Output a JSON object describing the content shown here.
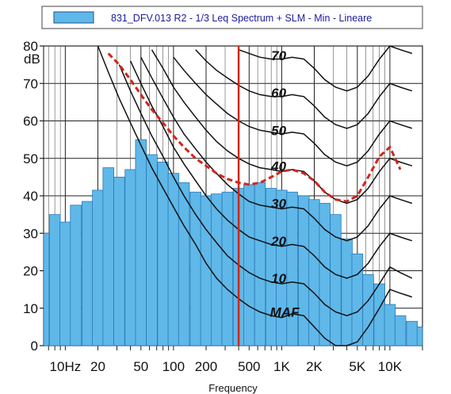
{
  "chart_data": {
    "type": "bar",
    "legend": {
      "label": "831_DFV.013 R2 - 1/3 Leq Spectrum + SLM - Min - Lineare",
      "placement": "top",
      "color": "#5fb8e8"
    },
    "xlabel": "Frequency",
    "ylabel": "dB",
    "ylim": [
      0,
      80
    ],
    "y_ticks": [
      0,
      10,
      20,
      30,
      40,
      50,
      60,
      70,
      80
    ],
    "x_scale": "log",
    "xlim_hz": [
      6.3,
      20000
    ],
    "x_tick_labels": [
      {
        "label": "10Hz",
        "hz": 10
      },
      {
        "label": "20",
        "hz": 20
      },
      {
        "label": "50",
        "hz": 50
      },
      {
        "label": "100",
        "hz": 100
      },
      {
        "label": "200",
        "hz": 200
      },
      {
        "label": "500",
        "hz": 500
      },
      {
        "label": "1K",
        "hz": 1000
      },
      {
        "label": "2K",
        "hz": 2000
      },
      {
        "label": "5K",
        "hz": 5000
      },
      {
        "label": "10K",
        "hz": 10000
      }
    ],
    "grid": true,
    "bars": {
      "series_name": "831_DFV.013 R2 - 1/3 Leq Spectrum + SLM - Min - Lineare",
      "color": "#5fb8e8",
      "band_hz": [
        6.3,
        8,
        10,
        12.5,
        16,
        20,
        25,
        31.5,
        40,
        50,
        63,
        80,
        100,
        125,
        160,
        200,
        250,
        315,
        400,
        500,
        630,
        800,
        1000,
        1250,
        1600,
        2000,
        2500,
        3150,
        4000,
        5000,
        6300,
        8000,
        10000,
        12500,
        16000,
        20000
      ],
      "values": [
        30,
        35,
        33,
        37.5,
        38.5,
        41.5,
        47.5,
        45,
        47,
        55,
        51,
        49,
        46,
        43.5,
        41,
        40,
        40.5,
        41,
        42,
        43,
        43.5,
        42,
        41.5,
        41,
        40,
        39,
        38,
        35,
        28.5,
        24.5,
        19,
        16.5,
        11,
        8,
        6.5,
        5
      ]
    },
    "vertical_marker": {
      "hz": 400,
      "color": "#d0261b"
    },
    "curves": {
      "freq_hz": [
        10,
        12.5,
        16,
        20,
        25,
        31.5,
        40,
        50,
        63,
        80,
        100,
        125,
        160,
        200,
        250,
        315,
        400,
        500,
        630,
        800,
        1000,
        1250,
        1600,
        2000,
        2500,
        3150,
        4000,
        5000,
        6300,
        8000,
        10000,
        12500,
        16000
      ],
      "series": [
        {
          "name": "MAF",
          "values": [
            null,
            null,
            null,
            80,
            73,
            66,
            59.5,
            53.5,
            47.5,
            42,
            37,
            32,
            27,
            22,
            18,
            15,
            12.5,
            10.5,
            9,
            8,
            7.5,
            8.5,
            8,
            5,
            2,
            0,
            -1,
            1,
            5,
            10,
            15,
            14,
            13
          ]
        },
        {
          "name": "10",
          "values": [
            null,
            null,
            null,
            null,
            null,
            75,
            68,
            62,
            56,
            50.5,
            45,
            40,
            35,
            31,
            27.5,
            24,
            21.5,
            19.5,
            18,
            17,
            16.5,
            17,
            16.5,
            14,
            11,
            9,
            8,
            9,
            12,
            16.5,
            21,
            19.5,
            18
          ]
        },
        {
          "name": "20",
          "values": [
            null,
            null,
            null,
            null,
            null,
            null,
            76,
            70,
            64,
            58.5,
            53,
            48.5,
            44,
            40,
            36.5,
            33.5,
            31,
            29,
            28,
            27,
            26.5,
            27,
            26.5,
            24,
            21,
            19,
            18,
            19,
            22,
            26.5,
            30,
            29,
            28
          ]
        },
        {
          "name": "30",
          "values": [
            null,
            null,
            null,
            null,
            null,
            null,
            null,
            77,
            71.5,
            66,
            61,
            56.5,
            52.5,
            49,
            46,
            43,
            40.5,
            38.5,
            37.5,
            37,
            36.5,
            37,
            36.5,
            34,
            31,
            29,
            28,
            29,
            32,
            36.5,
            40,
            39,
            38
          ]
        },
        {
          "name": "40",
          "values": [
            null,
            null,
            null,
            null,
            null,
            null,
            null,
            null,
            79,
            74,
            69,
            65,
            61,
            57.5,
            54.5,
            52,
            50,
            48.5,
            47.5,
            47,
            46.5,
            47,
            46.5,
            44,
            41,
            39,
            38,
            39,
            42,
            46.5,
            50,
            49,
            48
          ]
        },
        {
          "name": "50",
          "values": [
            null,
            null,
            null,
            null,
            null,
            null,
            null,
            null,
            null,
            null,
            77,
            73.5,
            70,
            67,
            64.5,
            62,
            60,
            58.5,
            57.5,
            57,
            56.5,
            57,
            56.5,
            54,
            51,
            49,
            48,
            49,
            52,
            56.5,
            60,
            59,
            58
          ]
        },
        {
          "name": "60",
          "values": [
            null,
            null,
            null,
            null,
            null,
            null,
            null,
            null,
            null,
            null,
            null,
            null,
            79,
            76,
            73.5,
            71.5,
            69.5,
            68,
            67,
            66.5,
            66.5,
            67,
            66.5,
            64,
            61,
            59,
            58,
            59,
            62,
            66.5,
            70,
            69,
            68
          ]
        },
        {
          "name": "70",
          "values": [
            null,
            null,
            null,
            null,
            null,
            null,
            null,
            null,
            null,
            null,
            null,
            null,
            null,
            null,
            null,
            null,
            79,
            78,
            77,
            76.5,
            76.5,
            77,
            76.5,
            74,
            71,
            69,
            68,
            69,
            72,
            76.5,
            80,
            79,
            78
          ]
        }
      ],
      "labels": [
        "70",
        "60",
        "50",
        "40",
        "30",
        "20",
        "10",
        "MAF"
      ],
      "threshold_curve": {
        "color": "#d0261b",
        "dashed": true,
        "freq_hz": [
          25,
          31.5,
          40,
          50,
          63,
          80,
          100,
          125,
          160,
          200,
          250,
          315,
          400,
          500,
          630,
          800,
          1000,
          1250,
          1600,
          2000,
          2500,
          3150,
          4000,
          5000,
          6300,
          8000,
          10000,
          12500
        ],
        "values": [
          78,
          75,
          71,
          67,
          63,
          59.5,
          56,
          53,
          50,
          48,
          46,
          44.5,
          43.5,
          43,
          43.5,
          45,
          46.5,
          47,
          46,
          44,
          41,
          39,
          38.5,
          40,
          45,
          50.5,
          53,
          47
        ]
      }
    }
  }
}
